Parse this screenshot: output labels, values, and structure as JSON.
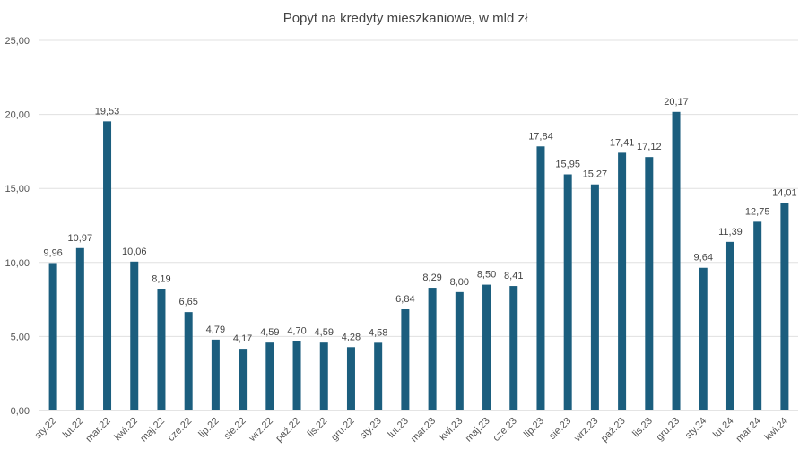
{
  "chart_data": {
    "type": "bar",
    "title": "Popyt na kredyty mieszkaniowe, w mld zł",
    "xlabel": "",
    "ylabel": "",
    "ylim": [
      0,
      25
    ],
    "yticks": [
      "0,00",
      "5,00",
      "10,00",
      "15,00",
      "20,00",
      "25,00"
    ],
    "grid": true,
    "bar_color": "#1b5e7e",
    "categories": [
      "sty.22",
      "lut.22",
      "mar.22",
      "kwi.22",
      "maj.22",
      "cze.22",
      "lip.22",
      "sie.22",
      "wrz.22",
      "paź.22",
      "lis.22",
      "gru.22",
      "sty.23",
      "lut.23",
      "mar.23",
      "kwi.23",
      "maj.23",
      "cze.23",
      "lip.23",
      "sie.23",
      "wrz.23",
      "paź.23",
      "lis.23",
      "gru.23",
      "sty.24",
      "lut.24",
      "mar.24",
      "kwi.24"
    ],
    "values": [
      9.96,
      10.97,
      19.53,
      10.06,
      8.19,
      6.65,
      4.79,
      4.17,
      4.59,
      4.7,
      4.59,
      4.28,
      4.58,
      6.84,
      8.29,
      8.0,
      8.5,
      8.41,
      17.84,
      15.95,
      15.27,
      17.41,
      17.12,
      20.17,
      9.64,
      11.39,
      12.75,
      14.01
    ],
    "data_labels": [
      "9,96",
      "10,97",
      "19,53",
      "10,06",
      "8,19",
      "6,65",
      "4,79",
      "4,17",
      "4,59",
      "4,70",
      "4,59",
      "4,28",
      "4,58",
      "6,84",
      "8,29",
      "8,00",
      "8,50",
      "8,41",
      "17,84",
      "15,95",
      "15,27",
      "17,41",
      "17,12",
      "20,17",
      "9,64",
      "11,39",
      "12,75",
      "14,01"
    ]
  }
}
